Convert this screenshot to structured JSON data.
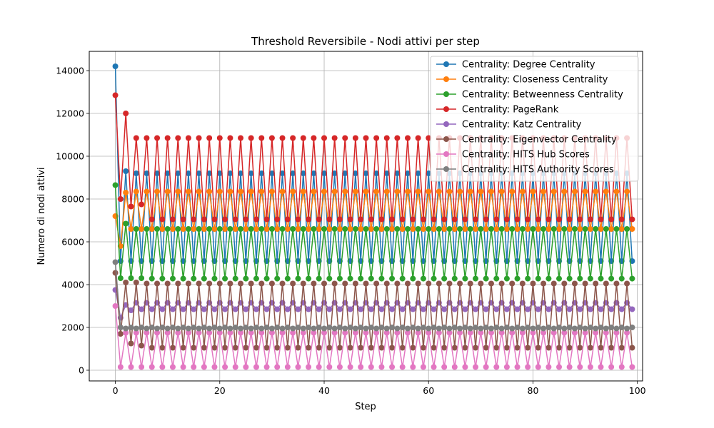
{
  "chart_data": {
    "type": "line",
    "title": "Threshold Reversibile - Nodi attivi per step",
    "xlabel": "Step",
    "ylabel": "Numero di nodi attivi",
    "xlim": [
      -5,
      101
    ],
    "ylim": [
      -500,
      14900
    ],
    "x_ticks": [
      0,
      20,
      40,
      60,
      80,
      100
    ],
    "x_tick_labels": [
      "0",
      "20",
      "40",
      "60",
      "80",
      "100"
    ],
    "y_ticks": [
      0,
      2000,
      4000,
      6000,
      8000,
      10000,
      12000,
      14000
    ],
    "y_tick_labels": [
      "0",
      "2000",
      "4000",
      "6000",
      "8000",
      "10000",
      "12000",
      "14000"
    ],
    "grid": true,
    "legend_position": "top-right",
    "x_start": 0,
    "x_end": 99,
    "series": [
      {
        "name": "Centrality: Degree Centrality",
        "color": "#1f77b4",
        "values_start": [
          14200,
          5100,
          9300,
          5100,
          9200,
          5100
        ],
        "odd_value": 5100,
        "even_value": 9200
      },
      {
        "name": "Centrality: Closeness Centrality",
        "color": "#ff7f0e",
        "values_start": [
          7200,
          5800,
          8300,
          6600,
          8350,
          6600
        ],
        "odd_value": 6600,
        "even_value": 8350
      },
      {
        "name": "Centrality: Betweenness Centrality",
        "color": "#2ca02c",
        "values_start": [
          8650,
          4300,
          6850,
          4300,
          6600,
          4300
        ],
        "odd_value": 4280,
        "even_value": 6600
      },
      {
        "name": "Centrality: PageRank",
        "color": "#d62728",
        "values_start": [
          12850,
          8000,
          12000,
          7650,
          10850,
          7750
        ],
        "odd_value": 7050,
        "even_value": 10850
      },
      {
        "name": "Centrality: Katz Centrality",
        "color": "#9467bd",
        "values_start": [
          3750,
          2450,
          3050,
          2800,
          3150,
          2850
        ],
        "odd_value": 2850,
        "even_value": 3150
      },
      {
        "name": "Centrality: Eigenvector Centrality",
        "color": "#8c564b",
        "values_start": [
          4550,
          1700,
          4100,
          1250,
          4100,
          1150
        ],
        "odd_value": 1050,
        "even_value": 4050
      },
      {
        "name": "Centrality: HITS Hub Scores",
        "color": "#e377c2",
        "values_start": [
          3000,
          150,
          1750,
          150,
          1750,
          150
        ],
        "odd_value": 150,
        "even_value": 1750
      },
      {
        "name": "Centrality: HITS Authority Scores",
        "color": "#7f7f7f",
        "values_start": [
          5050,
          2000,
          1950,
          2000,
          1950,
          2000
        ],
        "odd_value": 2000,
        "even_value": 1950
      }
    ]
  }
}
